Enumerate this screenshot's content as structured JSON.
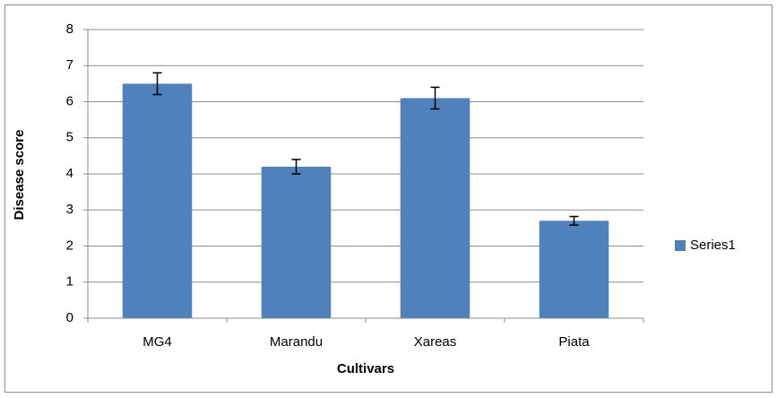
{
  "chart_data": {
    "type": "bar",
    "x_label": "Cultivars",
    "y_label": "Disease score",
    "categories": [
      "MG4",
      "Marandu",
      "Xareas",
      "Piata"
    ],
    "series": [
      {
        "name": "Series1",
        "color": "#4f81bd",
        "values": [
          6.5,
          4.2,
          6.1,
          2.7
        ],
        "errors": [
          0.3,
          0.2,
          0.3,
          0.12
        ]
      }
    ],
    "ylim": [
      0,
      8
    ],
    "yticks": [
      0,
      1,
      2,
      3,
      4,
      5,
      6,
      7,
      8
    ],
    "grid": true,
    "legend": "right"
  }
}
